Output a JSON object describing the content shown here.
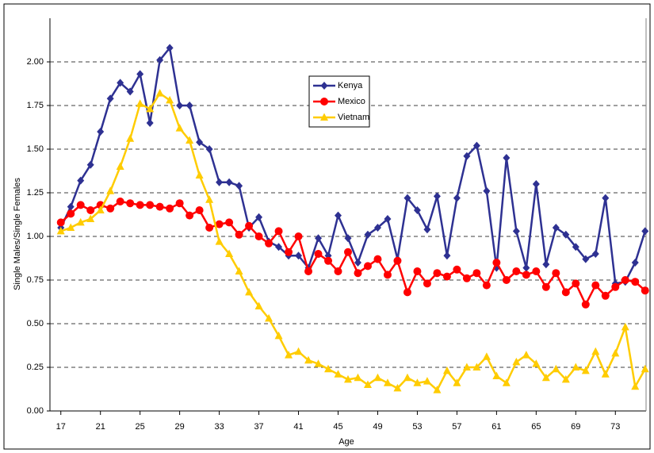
{
  "chart_data": {
    "type": "line",
    "x_label": "Age",
    "y_label": "Single Males/Single Females",
    "x": [
      17,
      18,
      19,
      20,
      21,
      22,
      23,
      24,
      25,
      26,
      27,
      28,
      29,
      30,
      31,
      32,
      33,
      34,
      35,
      36,
      37,
      38,
      39,
      40,
      41,
      42,
      43,
      44,
      45,
      46,
      47,
      48,
      49,
      50,
      51,
      52,
      53,
      54,
      55,
      56,
      57,
      58,
      59,
      60,
      61,
      62,
      63,
      64,
      65,
      66,
      67,
      68,
      69,
      70,
      71,
      72,
      73,
      74,
      75,
      76
    ],
    "series": [
      {
        "name": "Kenya",
        "color": "#2e3192",
        "marker": "diamond",
        "values": [
          1.05,
          1.17,
          1.32,
          1.41,
          1.6,
          1.79,
          1.88,
          1.83,
          1.93,
          1.65,
          2.01,
          2.08,
          1.75,
          1.75,
          1.54,
          1.5,
          1.31,
          1.31,
          1.29,
          1.05,
          1.11,
          0.97,
          0.94,
          0.89,
          0.89,
          0.82,
          0.99,
          0.89,
          1.12,
          0.99,
          0.85,
          1.01,
          1.05,
          1.1,
          0.87,
          1.22,
          1.15,
          1.04,
          1.23,
          0.89,
          1.22,
          1.46,
          1.52,
          1.26,
          0.82,
          1.45,
          1.03,
          0.82,
          1.3,
          0.84,
          1.05,
          1.01,
          0.94,
          0.87,
          0.9,
          1.22,
          0.73,
          0.74,
          0.85,
          1.03
        ]
      },
      {
        "name": "Mexico",
        "color": "#ff0000",
        "marker": "circle",
        "values": [
          1.08,
          1.13,
          1.18,
          1.15,
          1.18,
          1.16,
          1.2,
          1.19,
          1.18,
          1.18,
          1.17,
          1.16,
          1.19,
          1.12,
          1.15,
          1.05,
          1.07,
          1.08,
          1.01,
          1.06,
          1.0,
          0.96,
          1.03,
          0.91,
          1.0,
          0.8,
          0.9,
          0.86,
          0.8,
          0.91,
          0.79,
          0.83,
          0.87,
          0.78,
          0.86,
          0.68,
          0.8,
          0.73,
          0.79,
          0.77,
          0.81,
          0.76,
          0.79,
          0.72,
          0.85,
          0.75,
          0.8,
          0.78,
          0.8,
          0.71,
          0.79,
          0.68,
          0.73,
          0.61,
          0.72,
          0.66,
          0.71,
          0.75,
          0.74,
          0.69
        ]
      },
      {
        "name": "Vietnam",
        "color": "#ffcc00",
        "marker": "triangle",
        "values": [
          1.03,
          1.05,
          1.08,
          1.1,
          1.15,
          1.26,
          1.4,
          1.56,
          1.76,
          1.73,
          1.82,
          1.78,
          1.62,
          1.55,
          1.35,
          1.21,
          0.97,
          0.9,
          0.8,
          0.68,
          0.6,
          0.53,
          0.43,
          0.32,
          0.34,
          0.29,
          0.27,
          0.24,
          0.21,
          0.18,
          0.19,
          0.15,
          0.19,
          0.16,
          0.13,
          0.19,
          0.16,
          0.17,
          0.12,
          0.23,
          0.16,
          0.25,
          0.25,
          0.31,
          0.2,
          0.16,
          0.28,
          0.32,
          0.27,
          0.19,
          0.24,
          0.18,
          0.25,
          0.23,
          0.34,
          0.21,
          0.33,
          0.48,
          0.14,
          0.24
        ]
      }
    ],
    "xlim": [
      15.9,
      76.1
    ],
    "xticks": [
      17,
      21,
      25,
      29,
      33,
      37,
      41,
      45,
      49,
      53,
      57,
      61,
      65,
      69,
      73
    ],
    "ylim": [
      0,
      2.25
    ],
    "yticks": [
      {
        "value": 0,
        "label": "0.00"
      },
      {
        "value": 0.25,
        "label": "0.25"
      },
      {
        "value": 0.5,
        "label": "0.50"
      },
      {
        "value": 0.75,
        "label": "0.75"
      },
      {
        "value": 1,
        "label": "1.00"
      },
      {
        "value": 1.25,
        "label": "1.25"
      },
      {
        "value": 1.5,
        "label": "1.50"
      },
      {
        "value": 1.75,
        "label": "1.75"
      },
      {
        "value": 2,
        "label": "2.00"
      }
    ],
    "grid": true
  }
}
